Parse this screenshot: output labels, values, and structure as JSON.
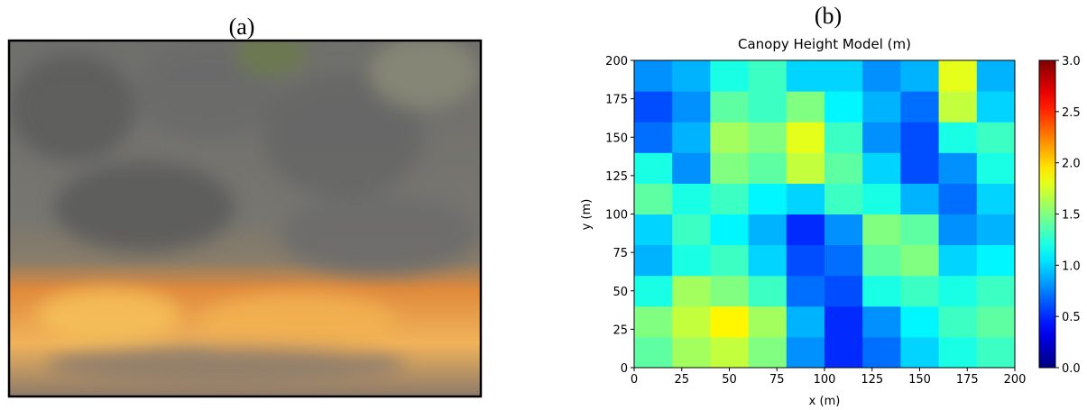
{
  "panel_labels": [
    "(a)",
    "(b)"
  ],
  "chart_data": {
    "type": "heatmap",
    "title": "Canopy Height Model (m)",
    "x_label": "x (m)",
    "y_label": "y (m)",
    "colormap": "jet",
    "xlim": [
      0,
      200
    ],
    "ylim": [
      0,
      200
    ],
    "xticks": [
      0,
      25,
      50,
      75,
      100,
      125,
      150,
      175,
      200
    ],
    "yticks": [
      0,
      25,
      50,
      75,
      100,
      125,
      150,
      175,
      200
    ],
    "zlim": [
      0,
      3
    ],
    "zticks": [
      {
        "value": 0,
        "label": "0.0"
      },
      0.5,
      {
        "value": 1,
        "label": "1.0"
      },
      1.5,
      {
        "value": 2,
        "label": "2.0"
      },
      2.5,
      {
        "value": 3,
        "label": "3.0"
      }
    ],
    "z": [
      [
        1.4,
        1.6,
        1.7,
        1.5,
        0.8,
        0.5,
        0.7,
        1.0,
        1.2,
        1.3
      ],
      [
        1.5,
        1.7,
        1.9,
        1.6,
        0.9,
        0.5,
        0.8,
        1.1,
        1.3,
        1.4
      ],
      [
        1.2,
        1.6,
        1.5,
        1.3,
        0.7,
        0.6,
        1.2,
        1.3,
        1.2,
        1.3
      ],
      [
        0.9,
        1.2,
        1.3,
        1.0,
        0.6,
        0.7,
        1.4,
        1.5,
        1.0,
        1.1
      ],
      [
        1.0,
        1.3,
        1.1,
        0.9,
        0.5,
        0.8,
        1.5,
        1.4,
        0.8,
        0.9
      ],
      [
        1.4,
        1.2,
        1.3,
        1.1,
        1.0,
        1.3,
        1.2,
        0.9,
        0.7,
        1.0
      ],
      [
        1.2,
        0.8,
        1.5,
        1.4,
        1.7,
        1.4,
        1.0,
        0.6,
        0.8,
        1.2
      ],
      [
        0.7,
        0.9,
        1.6,
        1.5,
        1.8,
        1.3,
        0.8,
        0.6,
        1.2,
        1.3
      ],
      [
        0.6,
        0.8,
        1.4,
        1.3,
        1.5,
        1.1,
        0.9,
        0.7,
        1.7,
        1.0
      ],
      [
        0.8,
        0.9,
        1.2,
        1.3,
        1.0,
        1.0,
        0.8,
        0.9,
        1.8,
        0.9
      ]
    ]
  }
}
